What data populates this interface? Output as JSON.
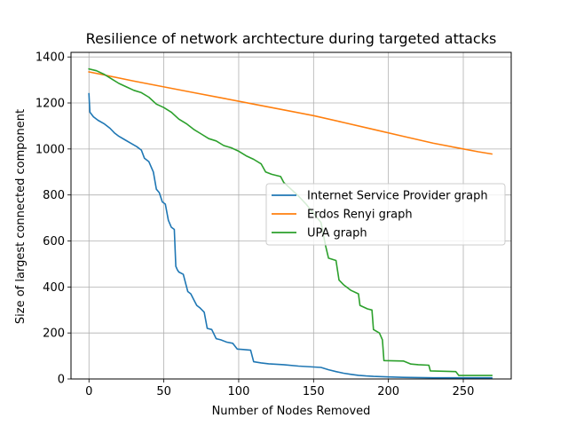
{
  "chart_data": {
    "type": "line",
    "title": "Resilience of network archtecture during targeted attacks",
    "xlabel": "Number of Nodes Removed",
    "ylabel": "Size of largest connected component",
    "xlim": [
      -12,
      282
    ],
    "ylim": [
      0,
      1420
    ],
    "xticks": [
      0,
      50,
      100,
      150,
      200,
      250
    ],
    "yticks": [
      0,
      200,
      400,
      600,
      800,
      1000,
      1200,
      1400
    ],
    "grid": true,
    "legend_position": "center-right",
    "series": [
      {
        "name": "Internet Service Provider graph",
        "color": "#1f77b4",
        "points": [
          [
            0,
            1240
          ],
          [
            0.6,
            1160
          ],
          [
            3,
            1140
          ],
          [
            6,
            1125
          ],
          [
            10,
            1110
          ],
          [
            14,
            1090
          ],
          [
            17,
            1070
          ],
          [
            20,
            1055
          ],
          [
            24,
            1040
          ],
          [
            28,
            1025
          ],
          [
            32,
            1010
          ],
          [
            35,
            995
          ],
          [
            37,
            960
          ],
          [
            40,
            945
          ],
          [
            43,
            900
          ],
          [
            45,
            825
          ],
          [
            47,
            810
          ],
          [
            49,
            770
          ],
          [
            51,
            760
          ],
          [
            53,
            690
          ],
          [
            55,
            660
          ],
          [
            57,
            650
          ],
          [
            58,
            490
          ],
          [
            59,
            475
          ],
          [
            60,
            465
          ],
          [
            63,
            455
          ],
          [
            66,
            380
          ],
          [
            68,
            370
          ],
          [
            70,
            345
          ],
          [
            72,
            320
          ],
          [
            74,
            310
          ],
          [
            77,
            290
          ],
          [
            79,
            220
          ],
          [
            82,
            215
          ],
          [
            85,
            175
          ],
          [
            88,
            170
          ],
          [
            92,
            160
          ],
          [
            96,
            155
          ],
          [
            99,
            130
          ],
          [
            103,
            128
          ],
          [
            108,
            125
          ],
          [
            110,
            75
          ],
          [
            115,
            70
          ],
          [
            120,
            66
          ],
          [
            130,
            62
          ],
          [
            140,
            56
          ],
          [
            150,
            52
          ],
          [
            155,
            50
          ],
          [
            160,
            40
          ],
          [
            165,
            32
          ],
          [
            170,
            25
          ],
          [
            175,
            20
          ],
          [
            180,
            16
          ],
          [
            185,
            13
          ],
          [
            190,
            11
          ],
          [
            200,
            9
          ],
          [
            210,
            7
          ],
          [
            220,
            6
          ],
          [
            230,
            5
          ],
          [
            240,
            5
          ],
          [
            250,
            5
          ],
          [
            260,
            5
          ],
          [
            269,
            5
          ]
        ]
      },
      {
        "name": "Erdos Renyi graph",
        "color": "#ff7f0e",
        "points": [
          [
            0,
            1335
          ],
          [
            10,
            1322
          ],
          [
            30,
            1295
          ],
          [
            50,
            1270
          ],
          [
            70,
            1245
          ],
          [
            90,
            1220
          ],
          [
            110,
            1195
          ],
          [
            130,
            1170
          ],
          [
            150,
            1145
          ],
          [
            170,
            1115
          ],
          [
            190,
            1085
          ],
          [
            210,
            1055
          ],
          [
            230,
            1025
          ],
          [
            250,
            1000
          ],
          [
            260,
            988
          ],
          [
            269,
            978
          ]
        ]
      },
      {
        "name": "UPA graph",
        "color": "#2ca02c",
        "points": [
          [
            0,
            1348
          ],
          [
            5,
            1340
          ],
          [
            10,
            1325
          ],
          [
            15,
            1305
          ],
          [
            20,
            1285
          ],
          [
            25,
            1270
          ],
          [
            30,
            1255
          ],
          [
            35,
            1245
          ],
          [
            40,
            1225
          ],
          [
            45,
            1195
          ],
          [
            50,
            1180
          ],
          [
            55,
            1160
          ],
          [
            60,
            1130
          ],
          [
            65,
            1110
          ],
          [
            70,
            1085
          ],
          [
            75,
            1065
          ],
          [
            80,
            1045
          ],
          [
            85,
            1035
          ],
          [
            90,
            1015
          ],
          [
            95,
            1005
          ],
          [
            100,
            990
          ],
          [
            105,
            970
          ],
          [
            110,
            955
          ],
          [
            115,
            935
          ],
          [
            118,
            900
          ],
          [
            122,
            890
          ],
          [
            128,
            880
          ],
          [
            130,
            855
          ],
          [
            135,
            825
          ],
          [
            140,
            795
          ],
          [
            145,
            760
          ],
          [
            150,
            720
          ],
          [
            155,
            680
          ],
          [
            158,
            580
          ],
          [
            160,
            525
          ],
          [
            165,
            515
          ],
          [
            167,
            430
          ],
          [
            170,
            410
          ],
          [
            175,
            385
          ],
          [
            180,
            370
          ],
          [
            181,
            320
          ],
          [
            186,
            305
          ],
          [
            189,
            300
          ],
          [
            190,
            215
          ],
          [
            194,
            200
          ],
          [
            196,
            170
          ],
          [
            197,
            80
          ],
          [
            210,
            78
          ],
          [
            215,
            65
          ],
          [
            220,
            62
          ],
          [
            227,
            60
          ],
          [
            228,
            35
          ],
          [
            245,
            32
          ],
          [
            247,
            15
          ],
          [
            269,
            15
          ]
        ]
      }
    ]
  }
}
